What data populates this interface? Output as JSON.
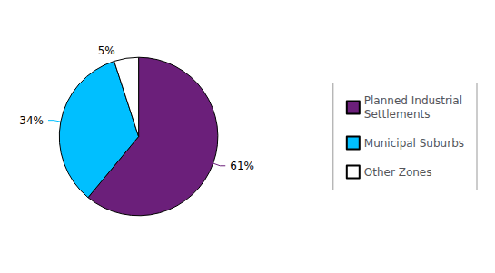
{
  "chart_data": {
    "type": "pie",
    "categories": [
      "Planned Industrial\nSettlements",
      "Municipal Suburbs",
      "Other Zones"
    ],
    "values": [
      61,
      34,
      5
    ],
    "value_labels": [
      "61%",
      "34%",
      "5%"
    ],
    "colors": [
      "#6B1F7A",
      "#00BFFF",
      "#FFFFFF"
    ],
    "data_labels": true,
    "legend": "right"
  }
}
